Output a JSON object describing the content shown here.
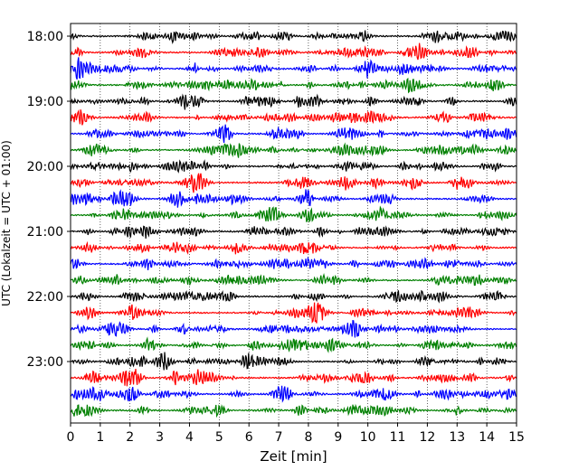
{
  "chart_data": {
    "type": "line",
    "title": "",
    "xlabel": "Zeit  [min]",
    "ylabel": "UTC (Lokalzeit = UTC + 01:00)",
    "xlim": [
      0,
      15
    ],
    "x_ticks": [
      0,
      1,
      2,
      3,
      4,
      5,
      6,
      7,
      8,
      9,
      10,
      11,
      12,
      13,
      14,
      15
    ],
    "y_ticks": [
      "18:00",
      "19:00",
      "20:00",
      "21:00",
      "22:00",
      "23:00"
    ],
    "grid": "vertical dotted at each minute",
    "trace_interval_minutes": 15,
    "start_time": "18:00",
    "traces": 24,
    "trace_colors": [
      "#000000",
      "#ff0000",
      "#0000ff",
      "#008000"
    ]
  }
}
